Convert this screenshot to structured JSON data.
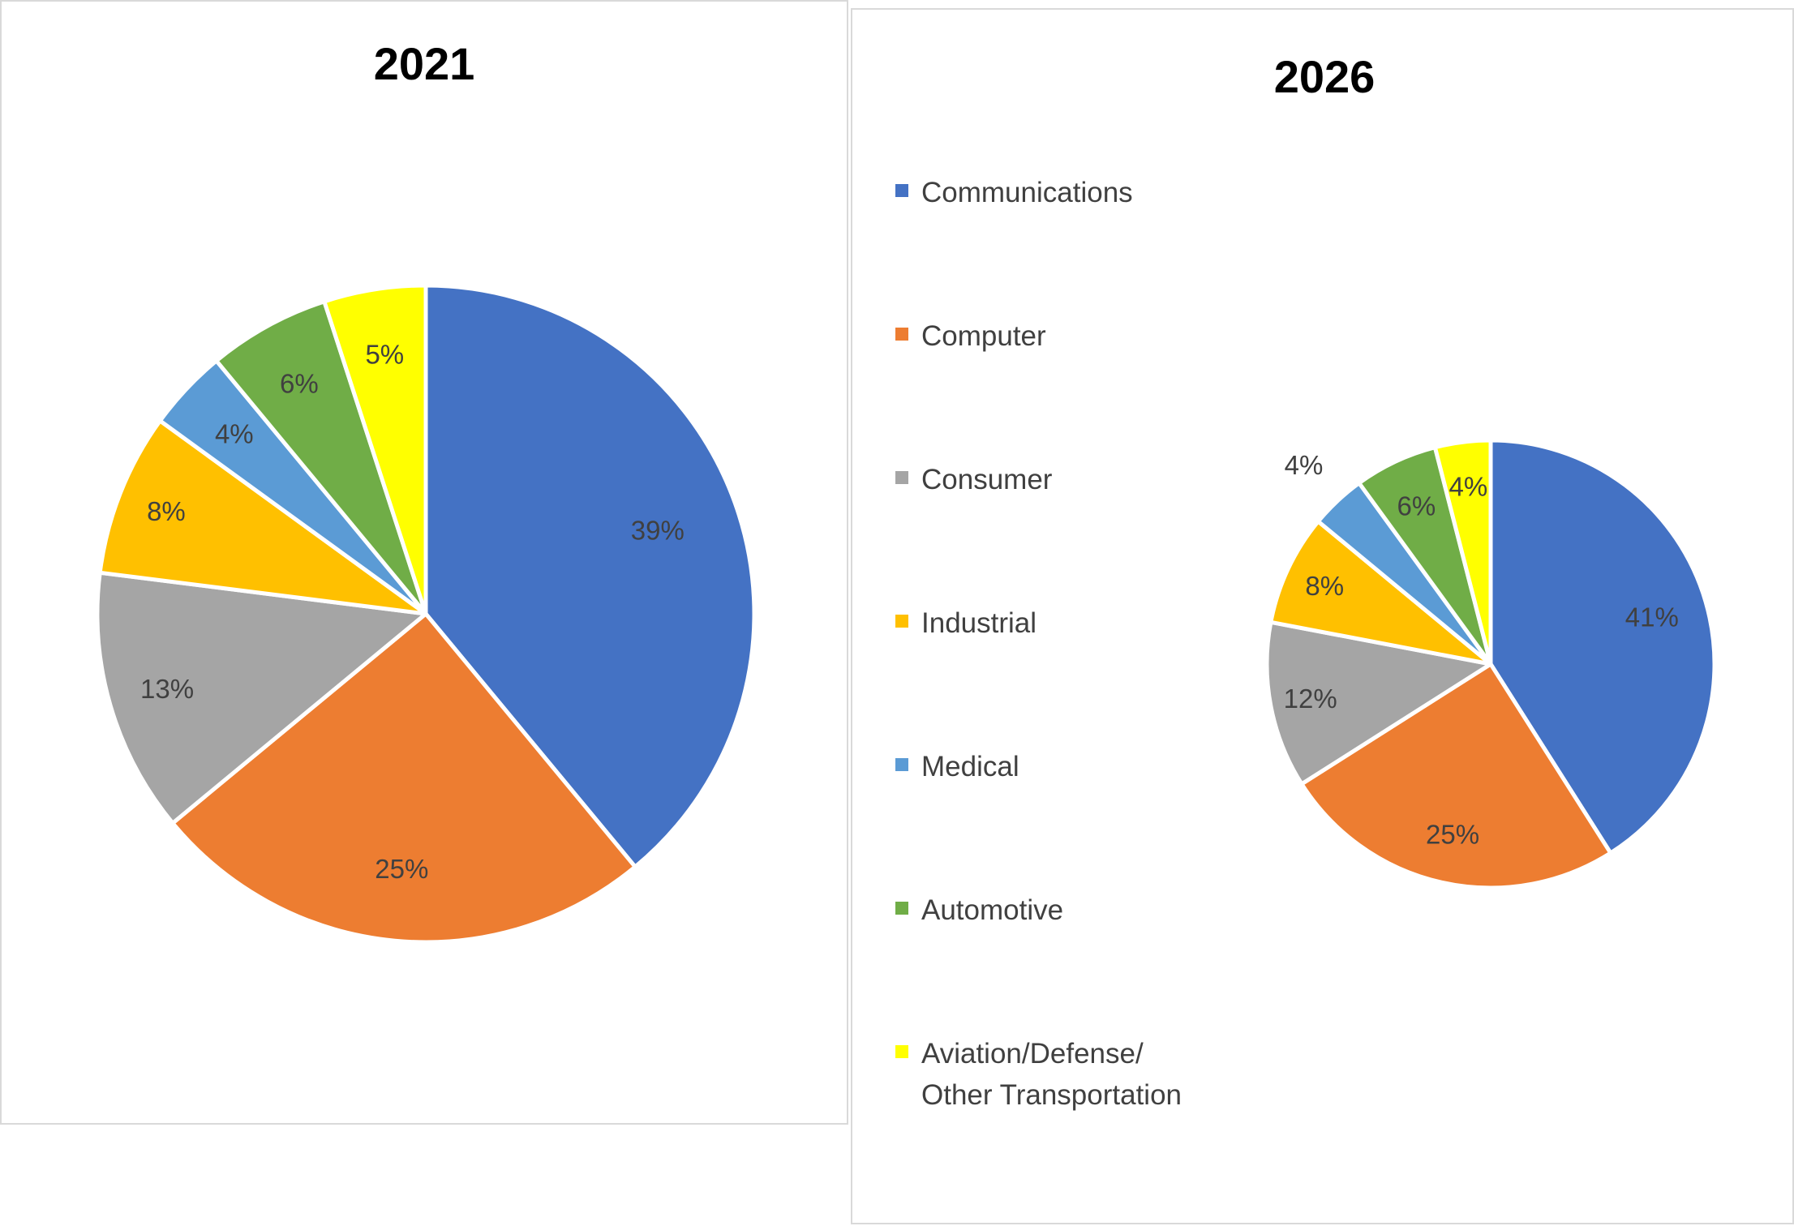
{
  "categories": [
    "Communications",
    "Computer",
    "Consumer",
    "Industrial",
    "Medical",
    "Automotive",
    "Aviation/Defense/ Other Transportation"
  ],
  "colors": [
    "#4472C4",
    "#ED7D31",
    "#A5A5A5",
    "#FFC000",
    "#5B9BD5",
    "#70AD47",
    "#FFFF00"
  ],
  "chart_data": [
    {
      "type": "pie",
      "title": "2021",
      "categories": [
        "Communications",
        "Computer",
        "Consumer",
        "Industrial",
        "Medical",
        "Automotive",
        "Aviation/Defense/ Other Transportation"
      ],
      "values": [
        39,
        25,
        13,
        8,
        4,
        6,
        5
      ],
      "labels": [
        "39%",
        "25%",
        "13%",
        "8%",
        "4%",
        "6%",
        "5%"
      ]
    },
    {
      "type": "pie",
      "title": "2026",
      "categories": [
        "Communications",
        "Computer",
        "Consumer",
        "Industrial",
        "Medical",
        "Automotive",
        "Aviation/Defense/ Other Transportation"
      ],
      "values": [
        41,
        25,
        12,
        8,
        4,
        6,
        4
      ],
      "labels": [
        "41%",
        "25%",
        "12%",
        "8%",
        "4%",
        "6%",
        "4%"
      ],
      "legend_position": "left"
    }
  ]
}
